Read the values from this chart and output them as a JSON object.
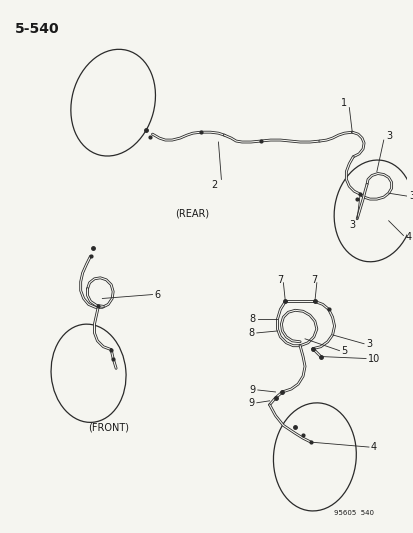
{
  "title": "5–540",
  "subtitle_bottom": "95605  540",
  "background_color": "#f5f5f0",
  "line_color": "#2a2a2a",
  "text_color": "#1a1a1a",
  "fig_width": 4.14,
  "fig_height": 5.33,
  "dpi": 100,
  "rear_label": "(REAR)",
  "front_label": "(FRONT)"
}
